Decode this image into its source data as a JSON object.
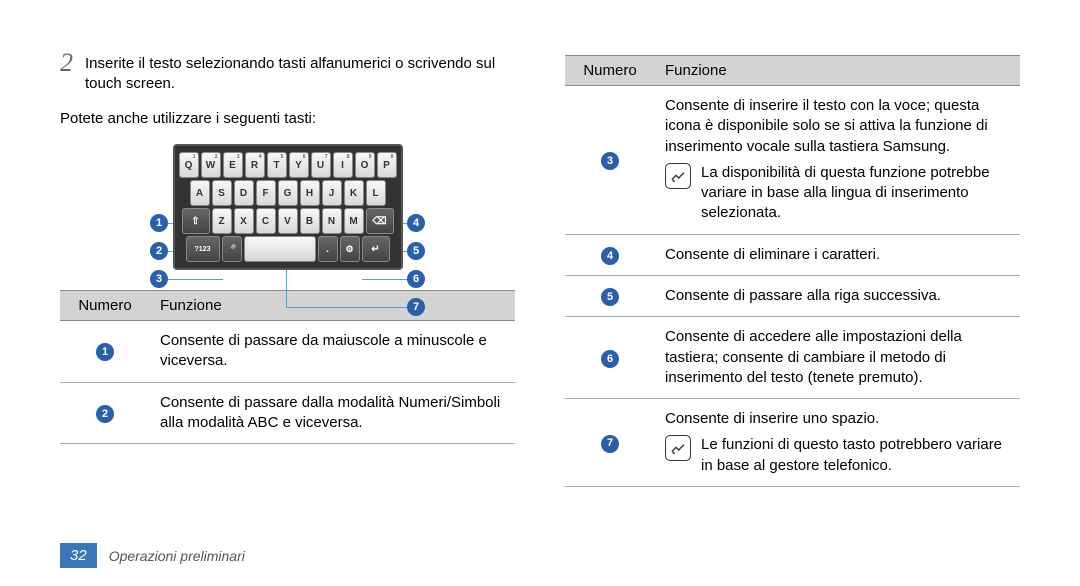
{
  "left": {
    "step_number": "2",
    "step_text": "Inserite il testo selezionando tasti alfanumerici o scrivendo sul touch screen.",
    "subtext": "Potete anche utilizzare i seguenti tasti:",
    "keyboard": {
      "row1": [
        "Q",
        "W",
        "E",
        "R",
        "T",
        "Y",
        "U",
        "I",
        "O",
        "P"
      ],
      "row1_sup": [
        "1",
        "2",
        "3",
        "4",
        "5",
        "6",
        "7",
        "8",
        "9",
        "0"
      ],
      "row2": [
        "A",
        "S",
        "D",
        "F",
        "G",
        "H",
        "J",
        "K",
        "L"
      ],
      "row3_shift": "⇧",
      "row3": [
        "Z",
        "X",
        "C",
        "V",
        "B",
        "N",
        "M"
      ],
      "row3_del": "⌫",
      "row4_sym": "?123",
      "row4_mic": "🎤",
      "row4_space": "",
      "row4_dot": ".",
      "row4_gear": "⚙",
      "row4_enter": "↵"
    },
    "callouts_left": [
      "1",
      "2",
      "3"
    ],
    "callouts_right": [
      "4",
      "5",
      "6",
      "7"
    ],
    "table": {
      "headers": [
        "Numero",
        "Funzione"
      ],
      "rows": [
        {
          "num": "1",
          "text": "Consente di passare da maiuscole a minuscole e viceversa."
        },
        {
          "num": "2",
          "text": "Consente di passare dalla modalità Numeri/Simboli alla modalità ABC e viceversa."
        }
      ]
    }
  },
  "right": {
    "table": {
      "headers": [
        "Numero",
        "Funzione"
      ],
      "rows": [
        {
          "num": "3",
          "text": "Consente di inserire il testo con la voce; questa icona è disponibile solo se si attiva la funzione di inserimento vocale sulla tastiera Samsung.",
          "note": "La disponibilità di questa funzione potrebbe variare in base alla lingua di inserimento selezionata."
        },
        {
          "num": "4",
          "text": "Consente di eliminare i caratteri."
        },
        {
          "num": "5",
          "text": "Consente di passare alla riga successiva."
        },
        {
          "num": "6",
          "text": "Consente di accedere alle impostazioni della tastiera; consente di cambiare il metodo di inserimento del testo (tenete premuto)."
        },
        {
          "num": "7",
          "text": "Consente di inserire uno spazio.",
          "note": "Le funzioni di questo tasto potrebbero variare in base al gestore telefonico."
        }
      ]
    }
  },
  "footer": {
    "page_number": "32",
    "section_label": "Operazioni preliminari"
  },
  "colors": {
    "badge_bg": "#2b5fa8",
    "page_num_bg": "#3b77b7",
    "header_bg": "#d3d3d3"
  }
}
